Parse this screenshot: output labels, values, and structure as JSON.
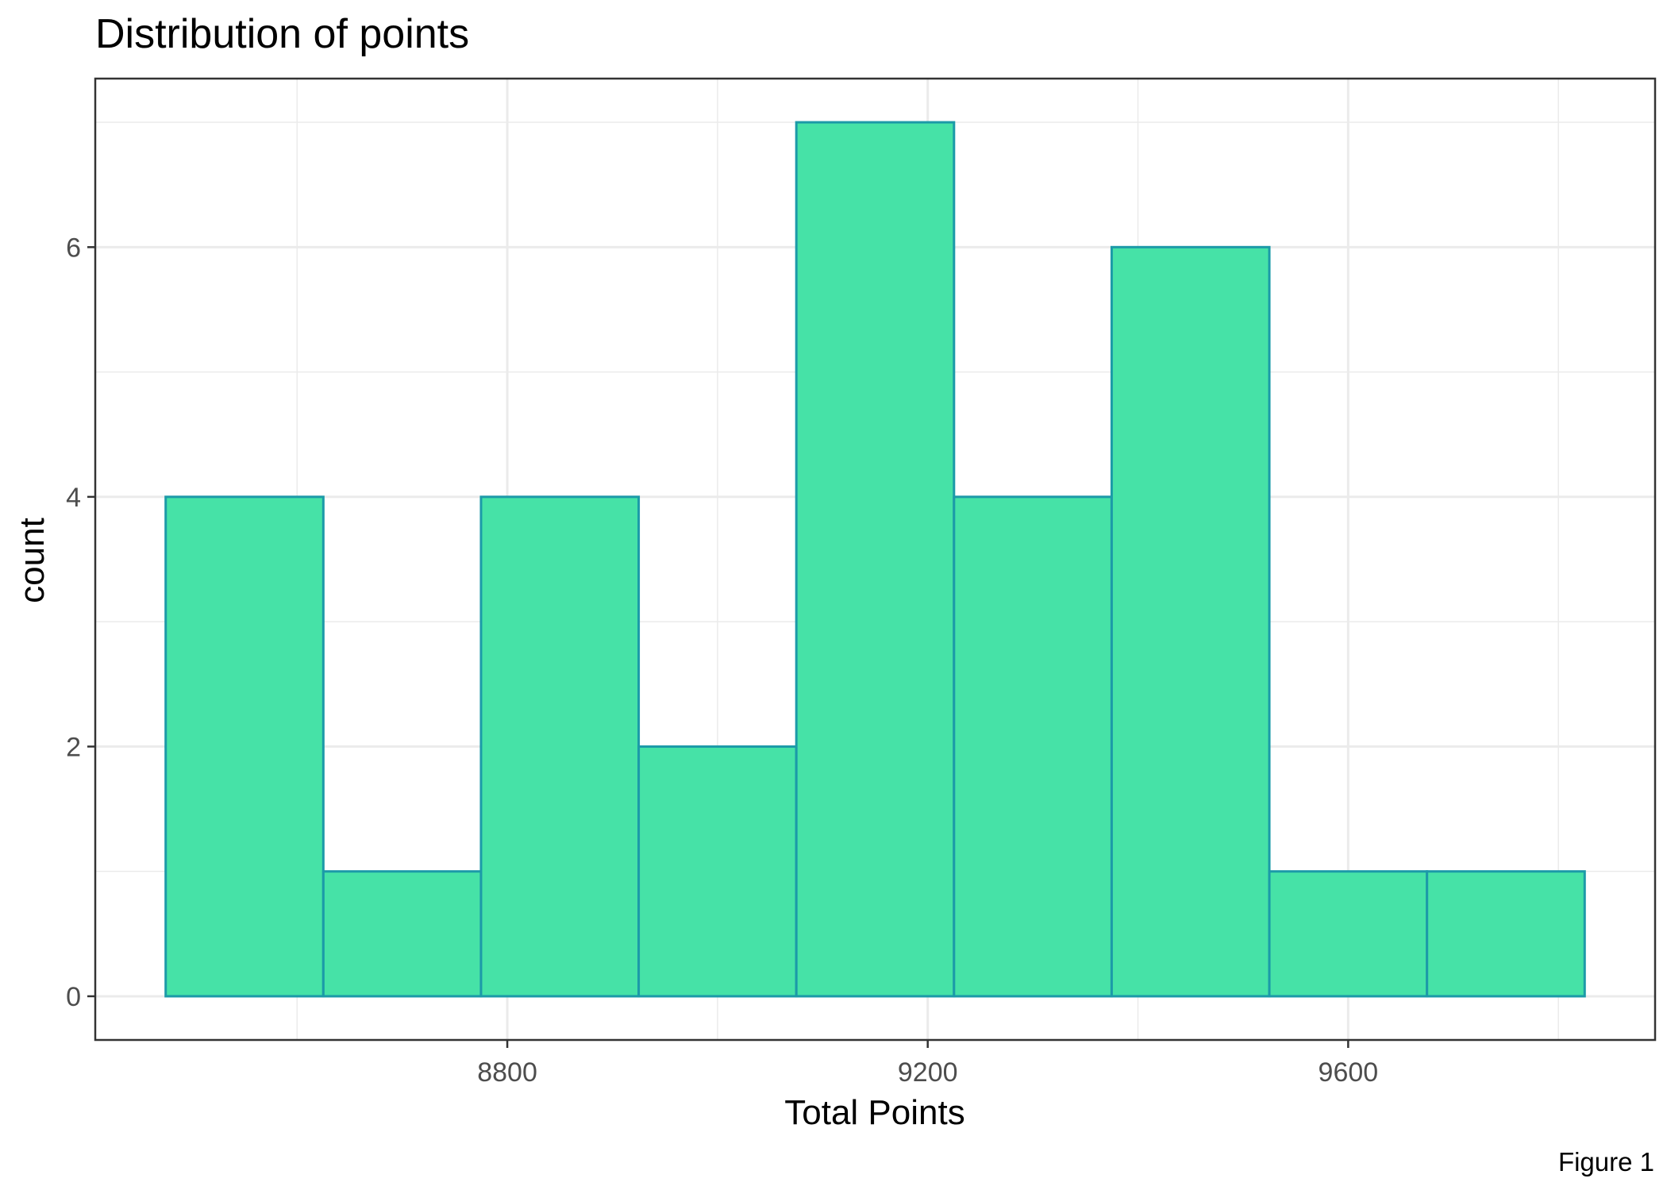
{
  "chart_data": {
    "type": "bar",
    "title": "Distribution of points",
    "xlabel": "Total Points",
    "ylabel": "count",
    "caption": "Figure 1",
    "bin_edges": [
      8475,
      8625,
      8775,
      8925,
      9075,
      9225,
      9375,
      9525,
      9675,
      9825
    ],
    "values": [
      4,
      1,
      4,
      2,
      7,
      4,
      6,
      1,
      1
    ],
    "xlim": [
      8408,
      9892
    ],
    "ylim": [
      -0.35,
      7.35
    ],
    "x_ticks": [
      8800,
      9200,
      9600
    ],
    "x_tick_labels": [
      "8800",
      "9200",
      "9600"
    ],
    "y_ticks": [
      0,
      2,
      4,
      6
    ],
    "y_tick_labels": [
      "0",
      "2",
      "4",
      "6"
    ],
    "grid": true,
    "theme": "bw",
    "bar_fill": "#46E2A7",
    "bar_outline": "#1C9AA8",
    "grid_color": "#EBEBEB",
    "panel_border": "#333333"
  }
}
